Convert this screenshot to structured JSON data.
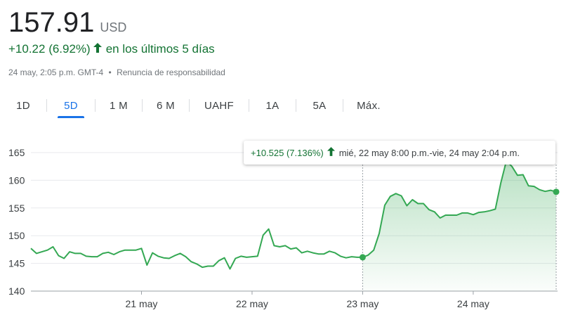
{
  "quote": {
    "price": "157.91",
    "currency": "USD",
    "change": "+10.22 (6.92%)",
    "period": "en los últimos 5 días",
    "timestamp": "24 may, 2:05 p.m. GMT-4",
    "separator": "•",
    "disclaimer": "Renuncia de responsabilidad"
  },
  "tabs": [
    {
      "label": "1D",
      "active": false
    },
    {
      "label": "5D",
      "active": true
    },
    {
      "label": "1 M",
      "active": false
    },
    {
      "label": "6 M",
      "active": false
    },
    {
      "label": "UAHF",
      "active": false
    },
    {
      "label": "1A",
      "active": false
    },
    {
      "label": "5A",
      "active": false
    },
    {
      "label": "Máx.",
      "active": false
    }
  ],
  "tooltip": {
    "change": "+10.525 (7.136%)",
    "range": "mié, 22 may 8:00 p.m.-vie, 24 may 2:04 p.m."
  },
  "colors": {
    "positive": "#137333",
    "line": "#34a853",
    "accent": "#1a73e8",
    "grid": "#e8eaed"
  },
  "chart_data": {
    "type": "line",
    "title": "",
    "xlabel": "",
    "ylabel": "",
    "ylim": [
      140,
      165
    ],
    "yticks": [
      140,
      145,
      150,
      155,
      160,
      165
    ],
    "x_tick_labels": [
      {
        "label": "21 may",
        "x": 20
      },
      {
        "label": "22 may",
        "x": 40
      },
      {
        "label": "23 may",
        "x": 60
      },
      {
        "label": "24 may",
        "x": 80
      }
    ],
    "grid": true,
    "selection_range": [
      60,
      95
    ],
    "series": [
      {
        "values": [
          [
            0,
            147.7
          ],
          [
            1,
            146.8
          ],
          [
            2,
            147.1
          ],
          [
            3,
            147.4
          ],
          [
            4,
            148.0
          ],
          [
            5,
            146.4
          ],
          [
            6,
            145.9
          ],
          [
            7,
            147.1
          ],
          [
            8,
            146.8
          ],
          [
            9,
            146.8
          ],
          [
            10,
            146.3
          ],
          [
            11,
            146.2
          ],
          [
            12,
            146.2
          ],
          [
            13,
            146.8
          ],
          [
            14,
            147.0
          ],
          [
            15,
            146.6
          ],
          [
            16,
            147.1
          ],
          [
            17,
            147.4
          ],
          [
            18,
            147.4
          ],
          [
            19,
            147.4
          ],
          [
            20,
            147.7
          ],
          [
            21,
            144.7
          ],
          [
            22,
            146.9
          ],
          [
            23,
            146.3
          ],
          [
            24,
            146.0
          ],
          [
            25,
            145.9
          ],
          [
            26,
            146.4
          ],
          [
            27,
            146.8
          ],
          [
            28,
            146.2
          ],
          [
            29,
            145.3
          ],
          [
            30,
            144.9
          ],
          [
            31,
            144.3
          ],
          [
            32,
            144.5
          ],
          [
            33,
            144.5
          ],
          [
            34,
            145.5
          ],
          [
            35,
            146.0
          ],
          [
            36,
            144.0
          ],
          [
            37,
            145.9
          ],
          [
            38,
            146.3
          ],
          [
            39,
            146.1
          ],
          [
            40,
            146.2
          ],
          [
            41,
            146.3
          ],
          [
            42,
            150.1
          ],
          [
            43,
            151.2
          ],
          [
            44,
            148.2
          ],
          [
            45,
            148.0
          ],
          [
            46,
            148.2
          ],
          [
            47,
            147.6
          ],
          [
            48,
            147.8
          ],
          [
            49,
            146.9
          ],
          [
            50,
            147.2
          ],
          [
            51,
            146.9
          ],
          [
            52,
            146.7
          ],
          [
            53,
            146.7
          ],
          [
            54,
            147.2
          ],
          [
            55,
            146.9
          ],
          [
            56,
            146.3
          ],
          [
            57,
            146.0
          ],
          [
            58,
            146.2
          ],
          [
            59,
            146.1
          ],
          [
            60,
            146.1
          ],
          [
            61,
            146.5
          ],
          [
            62,
            147.4
          ],
          [
            63,
            150.4
          ],
          [
            64,
            155.5
          ],
          [
            65,
            157.1
          ],
          [
            66,
            157.6
          ],
          [
            67,
            157.2
          ],
          [
            68,
            155.4
          ],
          [
            69,
            156.5
          ],
          [
            70,
            155.8
          ],
          [
            71,
            155.8
          ],
          [
            72,
            154.7
          ],
          [
            73,
            154.3
          ],
          [
            74,
            153.2
          ],
          [
            75,
            153.7
          ],
          [
            76,
            153.7
          ],
          [
            77,
            153.7
          ],
          [
            78,
            154.1
          ],
          [
            79,
            154.1
          ],
          [
            80,
            153.8
          ],
          [
            81,
            154.2
          ],
          [
            82,
            154.3
          ],
          [
            83,
            154.5
          ],
          [
            84,
            154.8
          ],
          [
            85,
            159.6
          ],
          [
            86,
            163.5
          ],
          [
            87,
            162.5
          ],
          [
            88,
            160.9
          ],
          [
            89,
            161.0
          ],
          [
            90,
            159.0
          ],
          [
            91,
            158.9
          ],
          [
            92,
            158.3
          ],
          [
            93,
            158.0
          ],
          [
            94,
            158.2
          ],
          [
            95,
            157.91
          ]
        ]
      }
    ]
  }
}
